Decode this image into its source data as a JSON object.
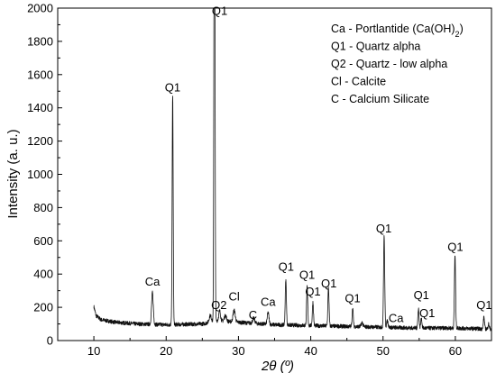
{
  "chart_data": {
    "type": "line",
    "xlabel": "2θ (º)",
    "ylabel": "Intensity (a. u.)",
    "xlim": [
      5,
      65
    ],
    "ylim": [
      0,
      2000
    ],
    "x_ticks": [
      10,
      20,
      30,
      40,
      50,
      60
    ],
    "y_ticks": [
      0,
      200,
      400,
      600,
      800,
      1000,
      1200,
      1400,
      1600,
      1800,
      2000
    ],
    "grid": false,
    "legend_position": "top-right",
    "legend": [
      "Ca - Portlantide (Ca(OH)2)",
      "Q1 - Quartz alpha",
      "Q2 - Quartz - low alpha",
      "Cl - Calcite",
      "C - Calcium Silicate"
    ],
    "annotations": [
      {
        "text": "Ca",
        "x": 18.1,
        "y": 330
      },
      {
        "text": "Q1",
        "x": 20.9,
        "y": 1500
      },
      {
        "text": "Q1",
        "x": 27.4,
        "y": 1960
      },
      {
        "text": "Q2",
        "x": 27.3,
        "y": 190
      },
      {
        "text": "Cl",
        "x": 29.4,
        "y": 240
      },
      {
        "text": "C",
        "x": 32.0,
        "y": 130
      },
      {
        "text": "Ca",
        "x": 34.1,
        "y": 210
      },
      {
        "text": "Q1",
        "x": 36.6,
        "y": 420
      },
      {
        "text": "Q1",
        "x": 39.5,
        "y": 370
      },
      {
        "text": "Q1",
        "x": 40.3,
        "y": 270
      },
      {
        "text": "Q1",
        "x": 42.5,
        "y": 320
      },
      {
        "text": "Q1",
        "x": 45.8,
        "y": 230
      },
      {
        "text": "Q1",
        "x": 50.1,
        "y": 650
      },
      {
        "text": "Ca",
        "x": 51.8,
        "y": 110
      },
      {
        "text": "Q1",
        "x": 55.3,
        "y": 250
      },
      {
        "text": "Q1",
        "x": 56.1,
        "y": 140
      },
      {
        "text": "Q1",
        "x": 60.0,
        "y": 540
      },
      {
        "text": "Q1",
        "x": 64.0,
        "y": 190
      }
    ],
    "series": [
      {
        "background": [
          [
            10.0,
            205
          ],
          [
            10.3,
            150
          ],
          [
            11,
            125
          ],
          [
            13,
            110
          ],
          [
            16,
            100
          ],
          [
            20,
            95
          ],
          [
            25,
            100
          ],
          [
            26,
            110
          ],
          [
            27,
            120
          ],
          [
            30,
            110
          ],
          [
            35,
            95
          ],
          [
            40,
            90
          ],
          [
            45,
            85
          ],
          [
            50,
            80
          ],
          [
            55,
            75
          ],
          [
            60,
            75
          ],
          [
            64,
            70
          ],
          [
            65,
            70
          ]
        ],
        "peaks": [
          {
            "x": 18.1,
            "height": 190,
            "width": 0.12
          },
          {
            "x": 20.9,
            "height": 1380,
            "width": 0.07
          },
          {
            "x": 26.1,
            "height": 40,
            "width": 0.15
          },
          {
            "x": 26.64,
            "height": 1950,
            "width": 0.06
          },
          {
            "x": 26.72,
            "height": 1900,
            "width": 0.06
          },
          {
            "x": 27.4,
            "height": 60,
            "width": 0.12
          },
          {
            "x": 28.2,
            "height": 35,
            "width": 0.15
          },
          {
            "x": 29.4,
            "height": 70,
            "width": 0.15
          },
          {
            "x": 32.1,
            "height": 30,
            "width": 0.15
          },
          {
            "x": 34.1,
            "height": 70,
            "width": 0.12
          },
          {
            "x": 36.55,
            "height": 270,
            "width": 0.08
          },
          {
            "x": 39.5,
            "height": 230,
            "width": 0.08
          },
          {
            "x": 40.3,
            "height": 140,
            "width": 0.08
          },
          {
            "x": 42.45,
            "height": 230,
            "width": 0.08
          },
          {
            "x": 45.8,
            "height": 110,
            "width": 0.08
          },
          {
            "x": 47.1,
            "height": 25,
            "width": 0.12
          },
          {
            "x": 50.15,
            "height": 550,
            "width": 0.08
          },
          {
            "x": 50.6,
            "height": 40,
            "width": 0.1
          },
          {
            "x": 54.9,
            "height": 120,
            "width": 0.08
          },
          {
            "x": 55.3,
            "height": 60,
            "width": 0.08
          },
          {
            "x": 59.95,
            "height": 440,
            "width": 0.08
          },
          {
            "x": 63.95,
            "height": 70,
            "width": 0.08
          },
          {
            "x": 64.6,
            "height": 30,
            "width": 0.08
          }
        ],
        "noise_amplitude": 12
      }
    ]
  }
}
